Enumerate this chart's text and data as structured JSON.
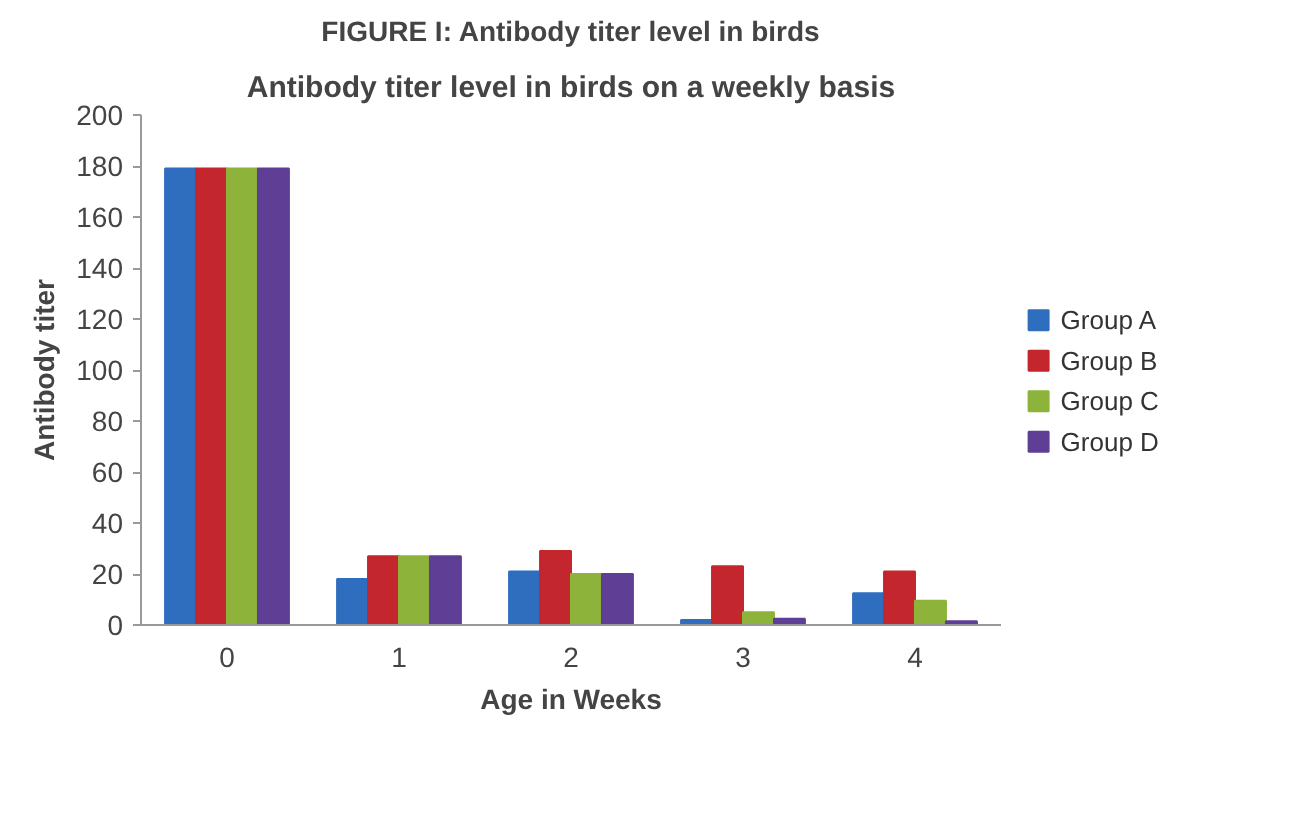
{
  "chart_data": {
    "type": "bar",
    "title": "FIGURE I: Antibody titer level in birds",
    "subtitle": "Antibody titer level in birds on a weekly basis",
    "xlabel": "Age in Weeks",
    "ylabel": "Antibody titer",
    "categories": [
      "0",
      "1",
      "2",
      "3",
      "4"
    ],
    "series": [
      {
        "name": "Group A",
        "color": "#2f6ebf",
        "values": [
          179,
          18,
          21,
          2,
          12.5
        ]
      },
      {
        "name": "Group B",
        "color": "#c4262e",
        "values": [
          179,
          27,
          29,
          23,
          21
        ]
      },
      {
        "name": "Group C",
        "color": "#8db33a",
        "values": [
          179,
          27,
          20,
          5,
          9.5
        ]
      },
      {
        "name": "Group D",
        "color": "#5f3e96",
        "values": [
          179,
          27,
          20,
          2.5,
          1.5
        ]
      }
    ],
    "ylim": [
      0,
      200
    ],
    "yticks": [
      0,
      20,
      40,
      60,
      80,
      100,
      120,
      140,
      160,
      180,
      200
    ],
    "grid": false,
    "legend": "right"
  }
}
